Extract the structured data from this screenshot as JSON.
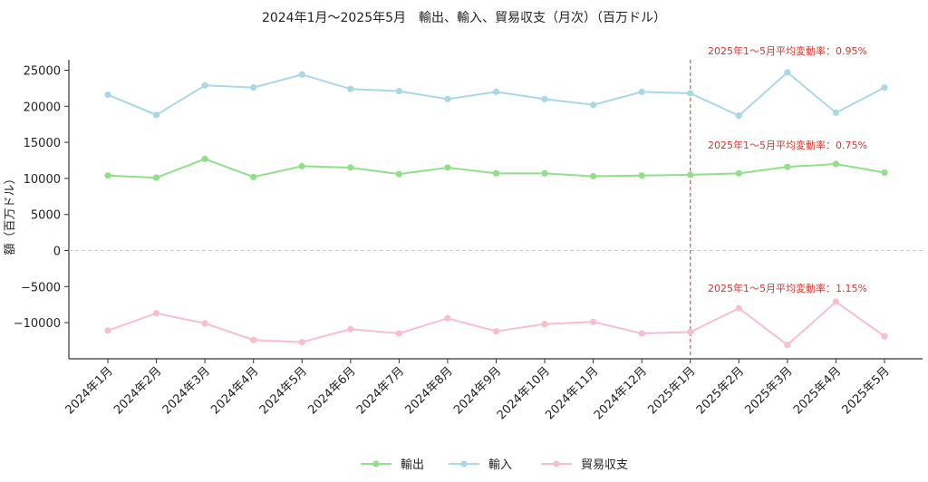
{
  "chart_data": {
    "type": "line",
    "title": "2024年1月～2025年5月　輸出、輸入、貿易収支（月次）（百万ドル）",
    "xlabel": "",
    "ylabel": "額（百万ドル）",
    "categories": [
      "2024年1月",
      "2024年2月",
      "2024年3月",
      "2024年4月",
      "2024年5月",
      "2024年6月",
      "2024年7月",
      "2024年8月",
      "2024年9月",
      "2024年10月",
      "2024年11月",
      "2024年12月",
      "2025年1月",
      "2025年2月",
      "2025年3月",
      "2025年4月",
      "2025年5月"
    ],
    "ylim": [
      -15000,
      26500
    ],
    "yticks": [
      -10000,
      -5000,
      0,
      5000,
      10000,
      15000,
      20000,
      25000
    ],
    "zero_line": true,
    "vline_category": "2025年1月",
    "series": [
      {
        "name": "輸出",
        "color": "#90e08a",
        "values": [
          10400,
          10100,
          12700,
          10200,
          11700,
          11500,
          10600,
          11500,
          10700,
          10700,
          10300,
          10400,
          10500,
          10700,
          11600,
          12000,
          10800
        ]
      },
      {
        "name": "輸入",
        "color": "#a8d8e8",
        "values": [
          21600,
          18800,
          22900,
          22600,
          24400,
          22400,
          22100,
          21000,
          22000,
          21000,
          20200,
          22000,
          21800,
          18700,
          24700,
          19100,
          22600
        ]
      },
      {
        "name": "貿易収支",
        "color": "#f7bfcc",
        "values": [
          -11100,
          -8700,
          -10100,
          -12400,
          -12700,
          -10900,
          -11500,
          -9400,
          -11200,
          -10200,
          -9900,
          -11500,
          -11300,
          -8000,
          -13100,
          -7100,
          -11900
        ]
      }
    ],
    "annotations": [
      {
        "text": "2025年1～5月平均変動率：0.95%",
        "series": "輸入"
      },
      {
        "text": "2025年1～5月平均変動率：0.75%",
        "series": "輸出"
      },
      {
        "text": "2025年1～5月平均変動率：1.15%",
        "series": "貿易収支"
      }
    ],
    "legend_position": "bottom-center",
    "grid": false
  }
}
